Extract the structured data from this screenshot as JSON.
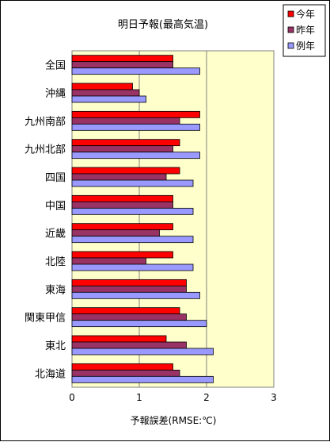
{
  "chart_data": {
    "type": "bar",
    "orientation": "horizontal",
    "title": "明日予報(最高気温)",
    "xlabel": "予報誤差(RMSE:℃)",
    "ylabel": "",
    "xlim": [
      0,
      3
    ],
    "x_ticks": [
      "0",
      "1",
      "2",
      "3"
    ],
    "grid": "vertical-major",
    "plot_background": "#ffffcc",
    "legend_position": "top-right",
    "categories": [
      "全国",
      "沖縄",
      "九州南部",
      "九州北部",
      "四国",
      "中国",
      "近畿",
      "北陸",
      "東海",
      "関東甲信",
      "東北",
      "北海道"
    ],
    "series": [
      {
        "name": "今年",
        "color": "#ff0000",
        "values": [
          1.5,
          0.9,
          1.9,
          1.6,
          1.6,
          1.5,
          1.5,
          1.5,
          1.7,
          1.6,
          1.4,
          1.5
        ]
      },
      {
        "name": "昨年",
        "color": "#993366",
        "values": [
          1.5,
          1.0,
          1.6,
          1.5,
          1.4,
          1.5,
          1.3,
          1.1,
          1.7,
          1.7,
          1.7,
          1.6
        ]
      },
      {
        "name": "例年",
        "color": "#9999ff",
        "values": [
          1.9,
          1.1,
          1.9,
          1.9,
          1.8,
          1.8,
          1.8,
          1.8,
          1.9,
          2.0,
          2.1,
          2.1
        ]
      }
    ]
  }
}
